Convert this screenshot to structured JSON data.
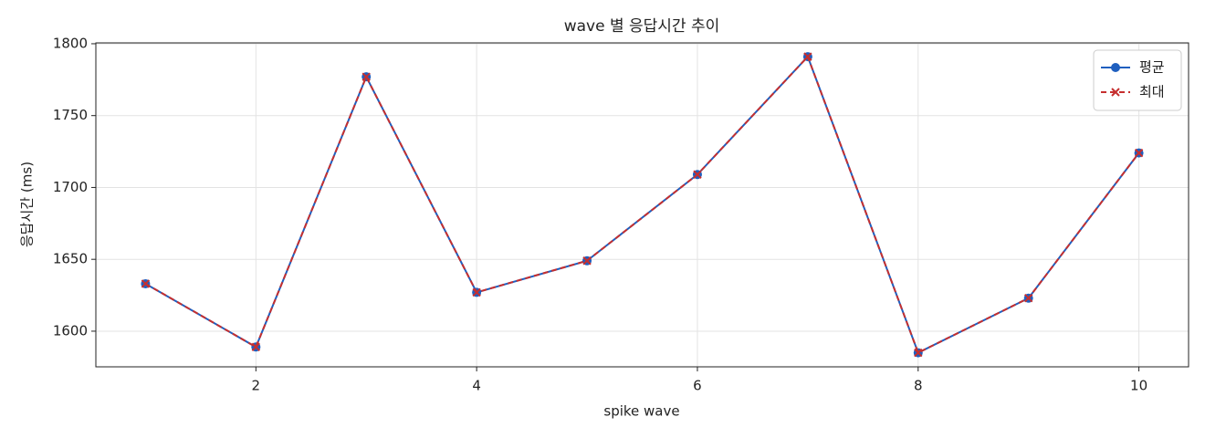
{
  "chart_data": {
    "type": "line",
    "title": "wave 별 응답시간 추이",
    "x_label": "spike wave",
    "y_label": "응답시간 (ms)",
    "x": [
      1,
      2,
      3,
      4,
      5,
      6,
      7,
      8,
      9,
      10
    ],
    "series": [
      {
        "name": "평균",
        "color": "#1f5fbf",
        "marker": "circle",
        "dash": "solid",
        "values": [
          1633,
          1589,
          1777,
          1627,
          1649,
          1709,
          1791,
          1585,
          1623,
          1724
        ]
      },
      {
        "name": "최대",
        "color": "#c62f2f",
        "marker": "x",
        "dash": "dashed",
        "values": [
          1633,
          1589,
          1777,
          1627,
          1649,
          1709,
          1791,
          1585,
          1623,
          1724
        ]
      }
    ],
    "xlim": [
      0.55,
      10.45
    ],
    "ylim": [
      1575.2,
      1800.6
    ],
    "xticks": [
      2,
      4,
      6,
      8,
      10
    ],
    "yticks": [
      1600,
      1650,
      1700,
      1750,
      1800
    ],
    "grid": true,
    "legend": "upper right"
  }
}
